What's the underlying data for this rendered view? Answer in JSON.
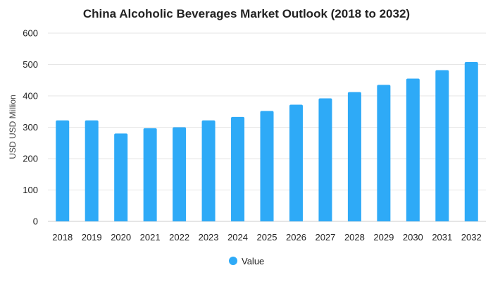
{
  "chart_data": {
    "type": "bar",
    "title": "China Alcoholic Beverages Market Outlook (2018 to 2032)",
    "xlabel": "",
    "ylabel": "USD USD Million",
    "ylim": [
      0,
      600
    ],
    "yticks": [
      0,
      100,
      200,
      300,
      400,
      500,
      600
    ],
    "grid": true,
    "legend_position": "bottom",
    "categories": [
      "2018",
      "2019",
      "2020",
      "2021",
      "2022",
      "2023",
      "2024",
      "2025",
      "2026",
      "2027",
      "2028",
      "2029",
      "2030",
      "2031",
      "2032"
    ],
    "series": [
      {
        "name": "Value",
        "color": "#2eaaf7",
        "values": [
          322,
          322,
          280,
          297,
          300,
          322,
          333,
          352,
          372,
          392,
          412,
          435,
          455,
          482,
          508
        ]
      }
    ]
  }
}
